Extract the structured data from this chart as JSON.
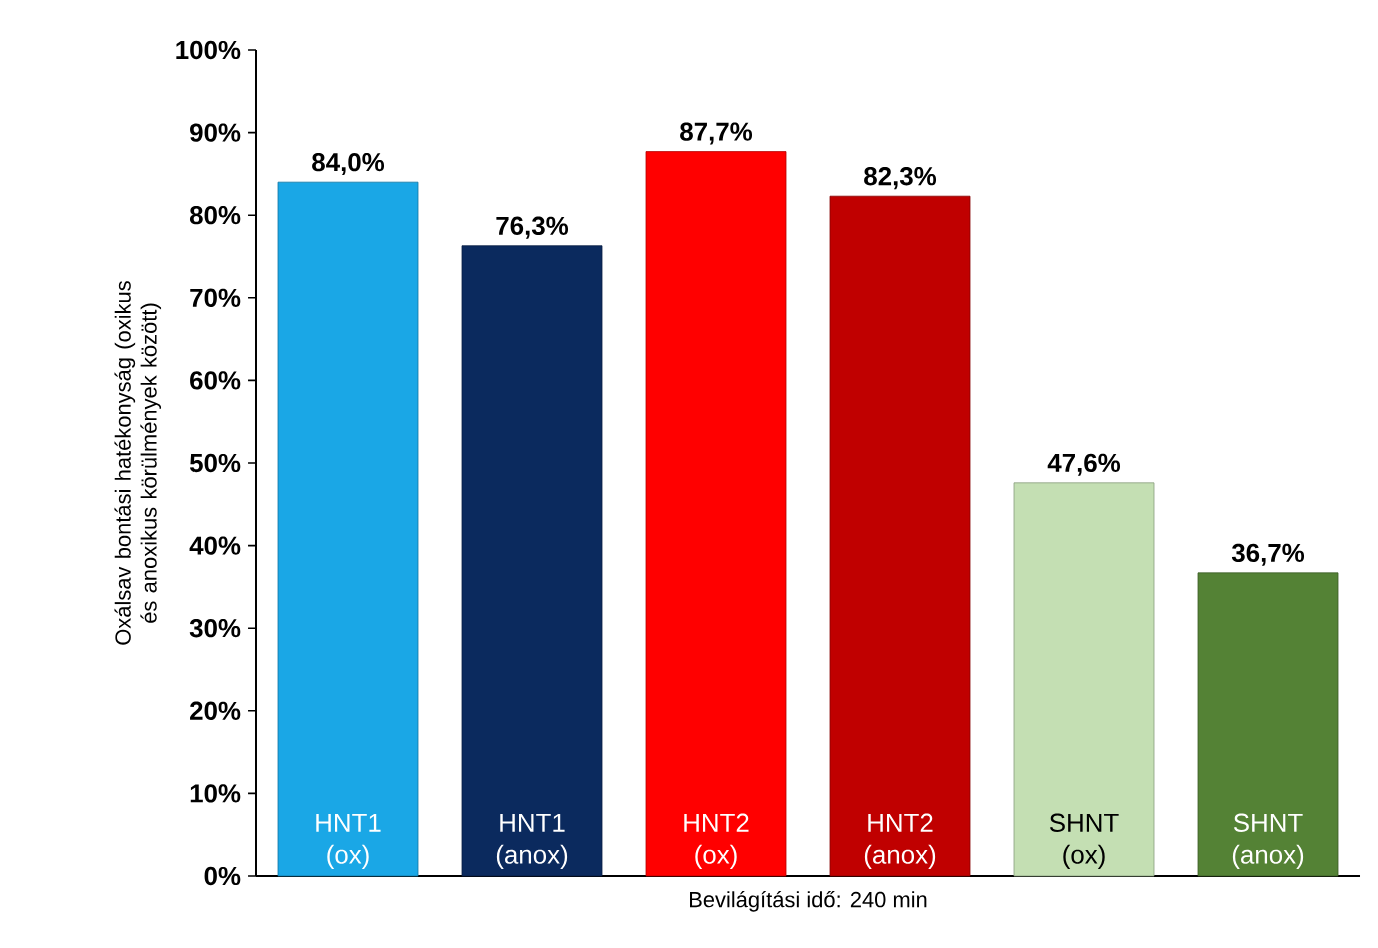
{
  "chart_data": {
    "type": "bar",
    "ylabel": "Oxálsav bontási hatékonyság (oxikus és anoxikus körülmények között)",
    "xlabel": "Bevilágítási idő: 240 min",
    "categories": [
      "HNT1 (ox)",
      "HNT1 (anox)",
      "HNT2 (ox)",
      "HNT2 (anox)",
      "SHNT (ox)",
      "SHNT (anox)"
    ],
    "values": [
      84.0,
      76.3,
      87.7,
      82.3,
      47.6,
      36.7
    ],
    "value_labels": [
      "84,0%",
      "76,3%",
      "87,7%",
      "82,3%",
      "47,6%",
      "36,7%"
    ],
    "colors": [
      "#1aa7e6",
      "#0b2a5e",
      "#ff0000",
      "#c00000",
      "#c4dfb3",
      "#548235"
    ],
    "ylim": [
      0,
      100
    ],
    "yticks": [
      {
        "value": 0,
        "label": "0%"
      },
      {
        "value": 10,
        "label": "10%"
      },
      {
        "value": 20,
        "label": "20%"
      },
      {
        "value": 30,
        "label": "30%"
      },
      {
        "value": 40,
        "label": "40%"
      },
      {
        "value": 50,
        "label": "50%"
      },
      {
        "value": 60,
        "label": "60%"
      },
      {
        "value": 70,
        "label": "70%"
      },
      {
        "value": 80,
        "label": "80%"
      },
      {
        "value": 90,
        "label": "90%"
      },
      {
        "value": 100,
        "label": "100%"
      }
    ],
    "grid": false
  }
}
